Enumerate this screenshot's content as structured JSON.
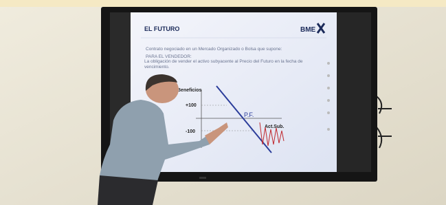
{
  "slide": {
    "title": "EL FUTURO",
    "logo": "BME",
    "intro": "Contrato negociado en un Mercado Organizado o Bolsa que supone:",
    "subheading": "PARA EL VENDEDOR:",
    "body": "La obligación de vender el activo subyacente al Precio del Futuro en la fecha de vencimiento.",
    "chart": {
      "y_label": "Beneficios",
      "upper": "+100",
      "lower": "-100",
      "pf_label": "P.F.",
      "x_label": "Act.Sub."
    }
  }
}
